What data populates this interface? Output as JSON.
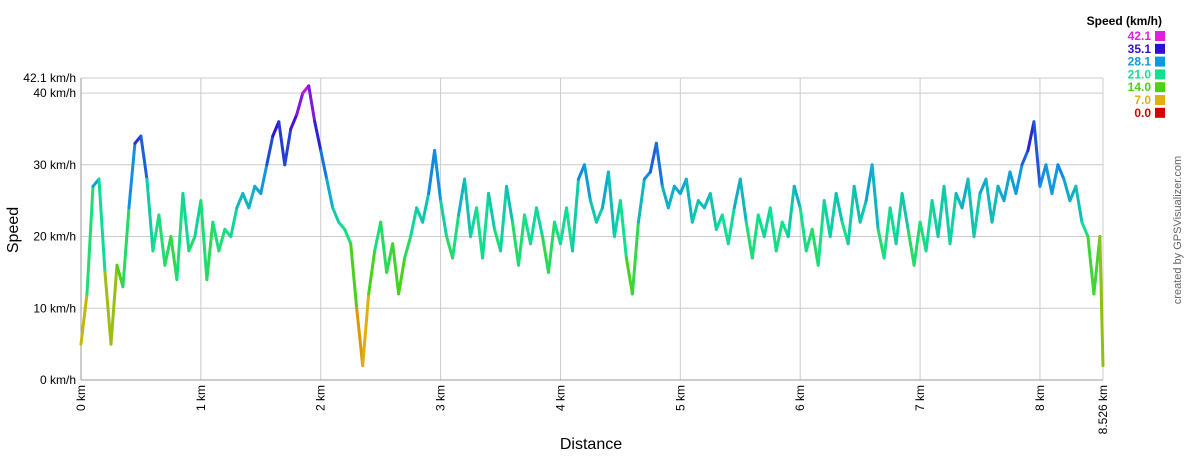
{
  "chart_data": {
    "type": "line",
    "xlabel": "Distance",
    "ylabel": "Speed",
    "credit": "created by GPSVisualizer.com",
    "xlim": [
      0,
      8.526
    ],
    "ylim": [
      0,
      42.1
    ],
    "grid": true,
    "xticks": [
      {
        "value": 0,
        "label": "0 km"
      },
      {
        "value": 1,
        "label": "1 km"
      },
      {
        "value": 2,
        "label": "2 km"
      },
      {
        "value": 3,
        "label": "3 km"
      },
      {
        "value": 4,
        "label": "4 km"
      },
      {
        "value": 5,
        "label": "5 km"
      },
      {
        "value": 6,
        "label": "6 km"
      },
      {
        "value": 7,
        "label": "7 km"
      },
      {
        "value": 8,
        "label": "8 km"
      },
      {
        "value": 8.526,
        "label": "8.526 km"
      }
    ],
    "yticks": [
      {
        "value": 0,
        "label": "0 km/h"
      },
      {
        "value": 10,
        "label": "10 km/h"
      },
      {
        "value": 20,
        "label": "20 km/h"
      },
      {
        "value": 30,
        "label": "30 km/h"
      },
      {
        "value": 40,
        "label": "40 km/h"
      },
      {
        "value": 42.1,
        "label": "42.1 km/h"
      }
    ],
    "colorscale": {
      "title": "Speed (km/h)",
      "stops": [
        {
          "value": 42.1,
          "label": "42.1",
          "color": "#e020e0"
        },
        {
          "value": 35.1,
          "label": "35.1",
          "color": "#3010d0"
        },
        {
          "value": 28.1,
          "label": "28.1",
          "color": "#1098e0"
        },
        {
          "value": 21.0,
          "label": "21.0",
          "color": "#10e090"
        },
        {
          "value": 14.0,
          "label": "14.0",
          "color": "#50d010"
        },
        {
          "value": 7.0,
          "label": "7.0",
          "color": "#e0b010"
        },
        {
          "value": 0.0,
          "label": "0.0",
          "color": "#d00000"
        }
      ]
    },
    "series": [
      {
        "x": [
          0,
          0.05,
          0.1,
          0.15,
          0.2,
          0.25,
          0.3,
          0.35,
          0.4,
          0.45,
          0.5,
          0.55,
          0.6,
          0.65,
          0.7,
          0.75,
          0.8,
          0.85,
          0.9,
          0.95,
          1,
          1.05,
          1.1,
          1.15,
          1.2,
          1.25,
          1.3,
          1.35,
          1.4,
          1.45,
          1.5,
          1.55,
          1.6,
          1.65,
          1.7,
          1.75,
          1.8,
          1.85,
          1.9,
          1.95,
          2,
          2.05,
          2.1,
          2.15,
          2.2,
          2.25,
          2.3,
          2.35,
          2.4,
          2.45,
          2.5,
          2.55,
          2.6,
          2.65,
          2.7,
          2.75,
          2.8,
          2.85,
          2.9,
          2.95,
          3,
          3.05,
          3.1,
          3.15,
          3.2,
          3.25,
          3.3,
          3.35,
          3.4,
          3.45,
          3.5,
          3.55,
          3.6,
          3.65,
          3.7,
          3.75,
          3.8,
          3.85,
          3.9,
          3.95,
          4,
          4.05,
          4.1,
          4.15,
          4.2,
          4.25,
          4.3,
          4.35,
          4.4,
          4.45,
          4.5,
          4.55,
          4.6,
          4.65,
          4.7,
          4.75,
          4.8,
          4.85,
          4.9,
          4.95,
          5,
          5.05,
          5.1,
          5.15,
          5.2,
          5.25,
          5.3,
          5.35,
          5.4,
          5.45,
          5.5,
          5.55,
          5.6,
          5.65,
          5.7,
          5.75,
          5.8,
          5.85,
          5.9,
          5.95,
          6,
          6.05,
          6.1,
          6.15,
          6.2,
          6.25,
          6.3,
          6.35,
          6.4,
          6.45,
          6.5,
          6.55,
          6.6,
          6.65,
          6.7,
          6.75,
          6.8,
          6.85,
          6.9,
          6.95,
          7,
          7.05,
          7.1,
          7.15,
          7.2,
          7.25,
          7.3,
          7.35,
          7.4,
          7.45,
          7.5,
          7.55,
          7.6,
          7.65,
          7.7,
          7.75,
          7.8,
          7.85,
          7.9,
          7.95,
          8,
          8.05,
          8.1,
          8.15,
          8.2,
          8.25,
          8.3,
          8.35,
          8.4,
          8.45,
          8.5,
          8.526
        ],
        "values": [
          5,
          12,
          27,
          28,
          15,
          5,
          16,
          13,
          24,
          33,
          34,
          28,
          18,
          23,
          16,
          20,
          14,
          26,
          18,
          20,
          25,
          14,
          22,
          18,
          21,
          20,
          24,
          26,
          24,
          27,
          26,
          30,
          34,
          36,
          30,
          35,
          37,
          40,
          41,
          36,
          32,
          28,
          24,
          22,
          21,
          19,
          10,
          2,
          12,
          18,
          22,
          15,
          19,
          12,
          17,
          20,
          24,
          22,
          26,
          32,
          25,
          20,
          17,
          23,
          28,
          20,
          24,
          17,
          26,
          21,
          18,
          27,
          22,
          16,
          23,
          19,
          24,
          20,
          15,
          22,
          19,
          24,
          18,
          28,
          30,
          25,
          22,
          24,
          29,
          20,
          25,
          17,
          12,
          22,
          28,
          29,
          33,
          27,
          24,
          27,
          26,
          28,
          22,
          25,
          24,
          26,
          21,
          23,
          19,
          24,
          28,
          22,
          17,
          23,
          20,
          24,
          18,
          22,
          20,
          27,
          24,
          18,
          21,
          16,
          25,
          20,
          26,
          22,
          19,
          27,
          22,
          25,
          30,
          21,
          17,
          24,
          19,
          26,
          21,
          16,
          22,
          18,
          25,
          20,
          27,
          19,
          26,
          24,
          28,
          20,
          26,
          28,
          22,
          27,
          25,
          29,
          26,
          30,
          32,
          36,
          27,
          30,
          26,
          30,
          28,
          25,
          27,
          22,
          20,
          12,
          20,
          2
        ]
      }
    ]
  }
}
